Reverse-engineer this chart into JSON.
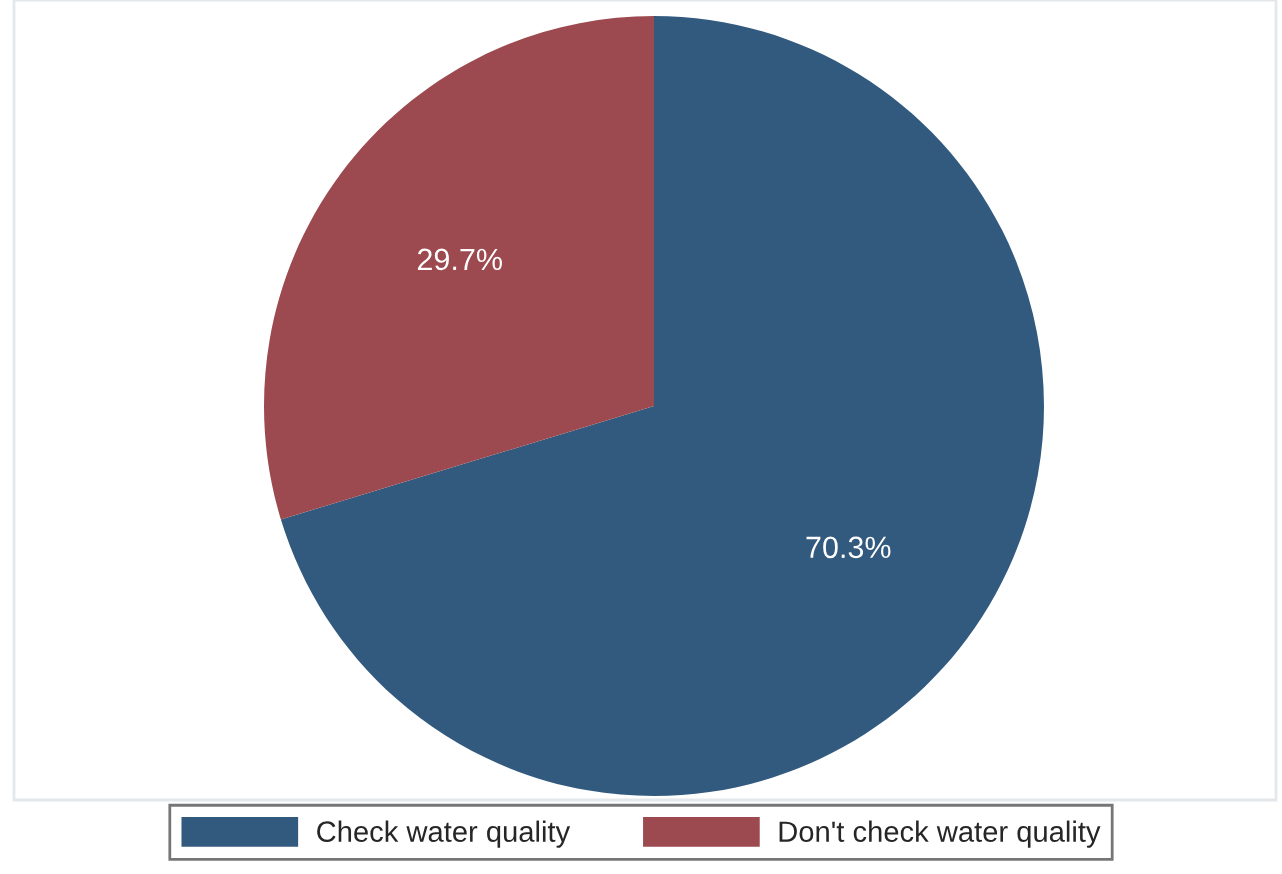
{
  "chart_data": {
    "type": "pie",
    "categories": [
      "Check water quality",
      "Don't check water quality"
    ],
    "values": [
      70.3,
      29.7
    ],
    "colors": [
      "#325a7e",
      "#9c4a4f"
    ],
    "value_labels": [
      "70.3%",
      "29.7%"
    ],
    "legend": "bottom"
  }
}
